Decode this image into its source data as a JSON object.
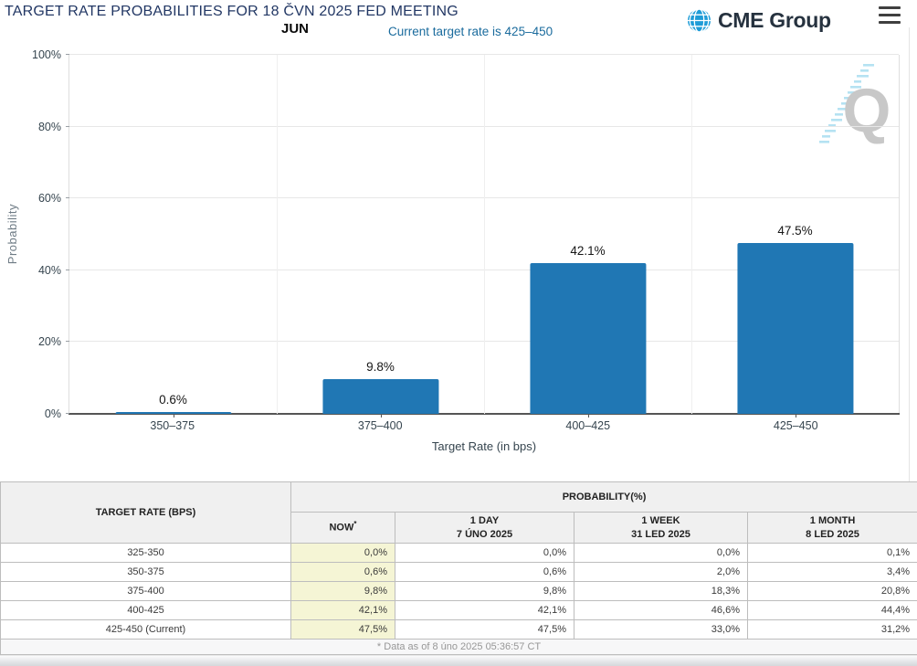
{
  "header": {
    "title": "TARGET RATE PROBABILITIES FOR 18 ČVN 2025 FED MEETING",
    "month_label": "JUN",
    "subtitle": "Current target rate is 425–450",
    "logo_text": "CME Group",
    "watermark_letter": "Q"
  },
  "chart_data": {
    "type": "bar",
    "title": "TARGET RATE PROBABILITIES FOR 18 ČVN 2025 FED MEETING",
    "categories": [
      "350–375",
      "375–400",
      "400–425",
      "425–450"
    ],
    "values": [
      0.6,
      9.8,
      42.1,
      47.5
    ],
    "bar_labels": [
      "0.6%",
      "9.8%",
      "42.1%",
      "47.5%"
    ],
    "xlabel": "Target Rate (in bps)",
    "ylabel": "Probability",
    "ylim": [
      0,
      100
    ],
    "yticks": [
      "100%",
      "80%",
      "60%",
      "40%",
      "20%",
      "0%"
    ],
    "grid": true,
    "legend": "none"
  },
  "table": {
    "col1_header": "TARGET RATE (BPS)",
    "group_header": "PROBABILITY(%)",
    "columns": [
      {
        "label": "NOW",
        "sup": "*",
        "date": ""
      },
      {
        "label": "1 DAY",
        "date": "7 ÚNO 2025"
      },
      {
        "label": "1 WEEK",
        "date": "31 LED 2025"
      },
      {
        "label": "1 MONTH",
        "date": "8 LED 2025"
      }
    ],
    "rows": [
      {
        "rate": "325-350",
        "now": "0,0%",
        "day": "0,0%",
        "week": "0,0%",
        "month": "0,1%"
      },
      {
        "rate": "350-375",
        "now": "0,6%",
        "day": "0,6%",
        "week": "2,0%",
        "month": "3,4%"
      },
      {
        "rate": "375-400",
        "now": "9,8%",
        "day": "9,8%",
        "week": "18,3%",
        "month": "20,8%"
      },
      {
        "rate": "400-425",
        "now": "42,1%",
        "day": "42,1%",
        "week": "46,6%",
        "month": "44,4%"
      },
      {
        "rate": "425-450 (Current)",
        "now": "47,5%",
        "day": "47,5%",
        "week": "33,0%",
        "month": "31,2%"
      }
    ],
    "footnote": "* Data as of 8 úno 2025 05:36:57 CT"
  },
  "colors": {
    "bar": "#2077b4",
    "title_text": "#223764",
    "subtitle_text": "#1a6b9d",
    "logo_navy": "#26323f",
    "logo_globe_blue": "#1e9cd7",
    "now_column_bg": "#f5f5d5",
    "watermark_gray": "#c8c8c8",
    "watermark_blue": "#b5e2f2",
    "axis_text": "#36454f"
  }
}
